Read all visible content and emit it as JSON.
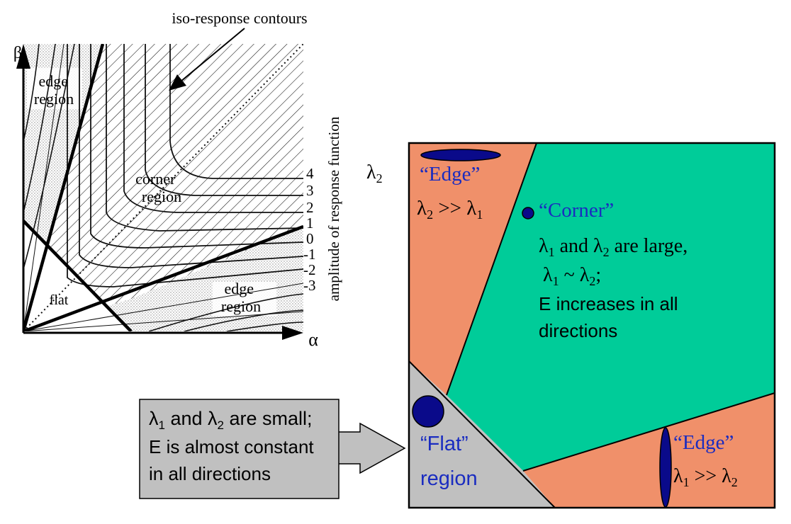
{
  "left_plot": {
    "top_label": "iso-response contours",
    "y_axis_label": "β",
    "x_axis_label": "α",
    "edge_region_top": [
      "edge",
      "region"
    ],
    "edge_region_bottom": [
      "edge",
      "region"
    ],
    "corner_region": [
      "corner",
      "region"
    ],
    "flat_label": "flat",
    "amplitude_label": "amplitude of response function",
    "contour_levels": [
      "4",
      "3",
      "2",
      "1",
      "0",
      "-1",
      "-2",
      "-3"
    ]
  },
  "right_diagram": {
    "lambda2_axis": {
      "base": "λ",
      "sub": "2"
    },
    "edge_top": {
      "title": "“Edge”",
      "relation": {
        "a": "λ",
        "a_sub": "2",
        "op": " >> ",
        "b": "λ",
        "b_sub": "1"
      }
    },
    "corner": {
      "title": "“Corner”",
      "line1": {
        "a": "λ",
        "a_sub": "1",
        "mid": " and ",
        "b": "λ",
        "b_sub": "2",
        "tail": " are large,"
      },
      "line2": {
        "a": "λ",
        "a_sub": "1",
        "mid": " ~ ",
        "b": "λ",
        "b_sub": "2",
        "tail": ";"
      },
      "line3": "E increases in all",
      "line4": "directions"
    },
    "edge_right": {
      "title": "“Edge”",
      "relation": {
        "a": "λ",
        "a_sub": "1",
        "op": " >> ",
        "b": "λ",
        "b_sub": "2"
      }
    },
    "flat": {
      "line1": "“Flat”",
      "line2": "region"
    },
    "colors": {
      "edge": "#f0906a",
      "corner": "#00cc99",
      "flat": "#c0c0c0",
      "blob": "#0a0a8a",
      "label_blue": "#1a2cc0"
    }
  },
  "callout": {
    "line1": {
      "a": "λ",
      "a_sub": "1",
      "mid": " and ",
      "b": "λ",
      "b_sub": "2",
      "tail": " are small;"
    },
    "line2": "E is almost constant",
    "line3": "in all directions"
  }
}
